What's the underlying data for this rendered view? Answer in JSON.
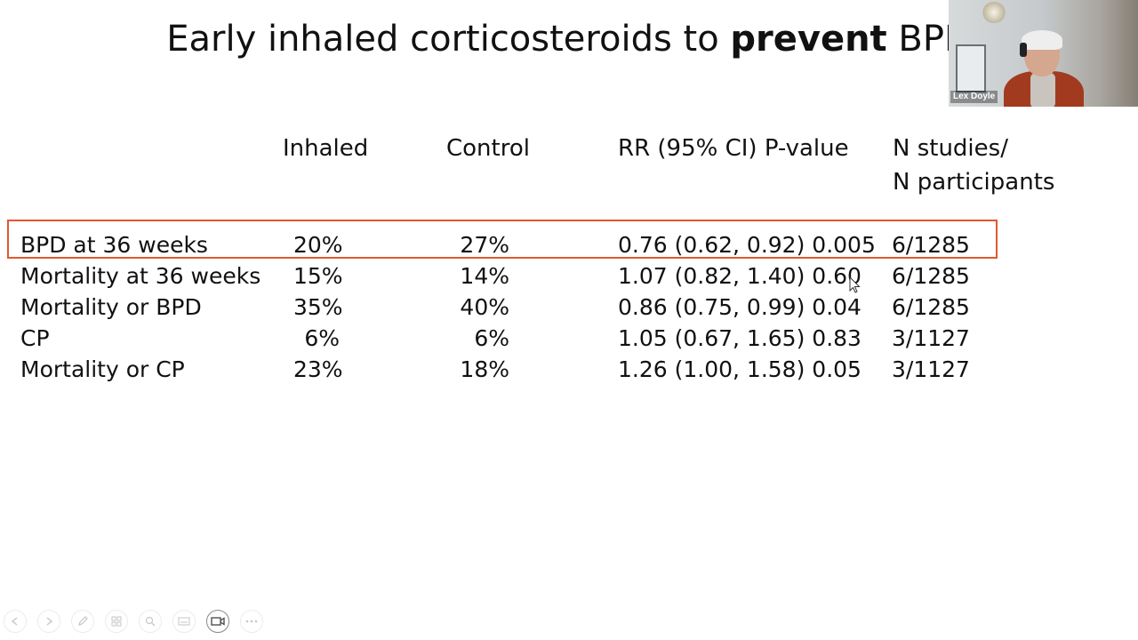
{
  "slide": {
    "title_prefix": "Early inhaled corticosteroids to ",
    "title_bold": "prevent",
    "title_suffix": " BPD"
  },
  "table": {
    "headers": {
      "inhaled": "Inhaled",
      "control": "Control",
      "rr": "RR (95% CI) P-value",
      "n_line1": "N studies/",
      "n_line2": "N participants"
    },
    "rows": [
      {
        "outcome": "BPD at 36 weeks",
        "inhaled": "20%",
        "control": "27%",
        "rr": "0.76 (0.62, 0.92) 0.005",
        "n": "6/1285"
      },
      {
        "outcome": "Mortality at 36 weeks",
        "inhaled": "15%",
        "control": "14%",
        "rr": "1.07 (0.82, 1.40) 0.60",
        "n": "6/1285"
      },
      {
        "outcome": "Mortality or BPD",
        "inhaled": "35%",
        "control": "40%",
        "rr": "0.86 (0.75, 0.99) 0.04",
        "n": "6/1285"
      },
      {
        "outcome": "CP",
        "inhaled": "6%",
        "control": "6%",
        "rr": "1.05 (0.67, 1.65) 0.83",
        "n": "3/1127"
      },
      {
        "outcome": "Mortality or CP",
        "inhaled": "23%",
        "control": "18%",
        "rr": "1.26 (1.00, 1.58) 0.05",
        "n": "3/1127"
      }
    ],
    "highlight_color": "#e05a2b"
  },
  "video": {
    "participant_name": "Lex Doyle"
  },
  "toolbar": {
    "icons": [
      "prev-slide-icon",
      "next-slide-icon",
      "pen-icon",
      "slides-grid-icon",
      "zoom-icon",
      "subtitles-icon",
      "camera-icon",
      "more-options-icon"
    ]
  }
}
